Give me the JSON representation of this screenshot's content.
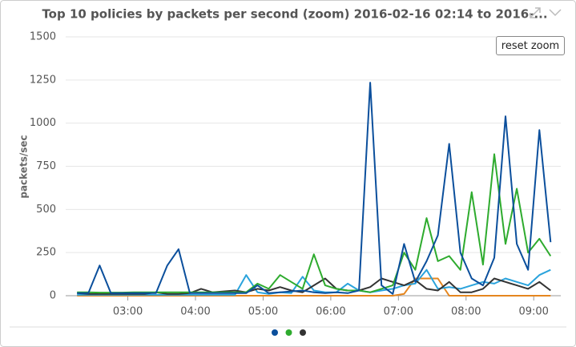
{
  "chart_data": {
    "type": "line",
    "title": "Top 10 policies by packets per second (zoom) 2016-02-16 02:14 to 2016-...",
    "y_label": "packets/sec",
    "x": [
      "02:15",
      "02:25",
      "02:35",
      "02:45",
      "02:55",
      "03:05",
      "03:15",
      "03:25",
      "03:35",
      "03:45",
      "03:55",
      "04:05",
      "04:15",
      "04:25",
      "04:35",
      "04:45",
      "04:55",
      "05:05",
      "05:15",
      "05:25",
      "05:35",
      "05:45",
      "05:55",
      "06:05",
      "06:15",
      "06:25",
      "06:35",
      "06:45",
      "06:55",
      "07:05",
      "07:15",
      "07:25",
      "07:35",
      "07:45",
      "07:55",
      "08:05",
      "08:15",
      "08:25",
      "08:35",
      "08:45",
      "08:55",
      "09:05",
      "09:15"
    ],
    "xlim": [
      "02:12",
      "09:24"
    ],
    "xticks": [
      "03:00",
      "04:00",
      "05:00",
      "06:00",
      "07:00",
      "08:00",
      "09:00"
    ],
    "ylim": [
      0,
      1500
    ],
    "yticks": [
      0,
      250,
      500,
      750,
      1000,
      1250,
      1500
    ],
    "grid": true,
    "series": [
      {
        "color": "#0b4f9c",
        "values": [
          15,
          15,
          175,
          15,
          15,
          15,
          15,
          15,
          175,
          270,
          15,
          15,
          15,
          15,
          15,
          15,
          60,
          15,
          20,
          25,
          30,
          20,
          15,
          20,
          15,
          30,
          1235,
          60,
          10,
          300,
          80,
          200,
          350,
          880,
          250,
          100,
          60,
          220,
          1040,
          300,
          150,
          960,
          310
        ]
      },
      {
        "color": "#2eab2e",
        "values": [
          20,
          20,
          18,
          18,
          18,
          20,
          20,
          20,
          20,
          20,
          20,
          20,
          20,
          20,
          20,
          20,
          70,
          40,
          120,
          80,
          40,
          240,
          60,
          40,
          30,
          30,
          20,
          40,
          60,
          250,
          150,
          450,
          200,
          230,
          150,
          600,
          180,
          820,
          300,
          620,
          250,
          330,
          230
        ]
      },
      {
        "color": "#333333",
        "values": [
          15,
          10,
          10,
          10,
          10,
          10,
          10,
          20,
          10,
          10,
          15,
          40,
          20,
          25,
          30,
          20,
          40,
          30,
          50,
          30,
          20,
          60,
          100,
          40,
          30,
          30,
          50,
          100,
          80,
          60,
          90,
          40,
          30,
          80,
          20,
          20,
          40,
          100,
          80,
          60,
          40,
          80,
          30
        ]
      },
      {
        "color": "#2aa3dc",
        "values": [
          5,
          5,
          5,
          5,
          5,
          5,
          5,
          5,
          5,
          5,
          5,
          5,
          5,
          5,
          5,
          120,
          20,
          10,
          20,
          15,
          110,
          30,
          20,
          20,
          70,
          30,
          20,
          30,
          40,
          60,
          70,
          150,
          40,
          50,
          40,
          60,
          80,
          70,
          100,
          80,
          60,
          120,
          150
        ]
      },
      {
        "color": "#e5861f",
        "values": [
          0,
          0,
          0,
          0,
          0,
          0,
          0,
          0,
          0,
          0,
          0,
          0,
          0,
          0,
          0,
          0,
          0,
          0,
          0,
          0,
          0,
          0,
          0,
          0,
          0,
          0,
          0,
          0,
          0,
          10,
          100,
          100,
          100,
          0,
          0,
          0,
          0,
          0,
          0,
          0,
          0,
          0,
          0
        ]
      }
    ]
  },
  "controls": {
    "reset_zoom": "reset zoom"
  }
}
